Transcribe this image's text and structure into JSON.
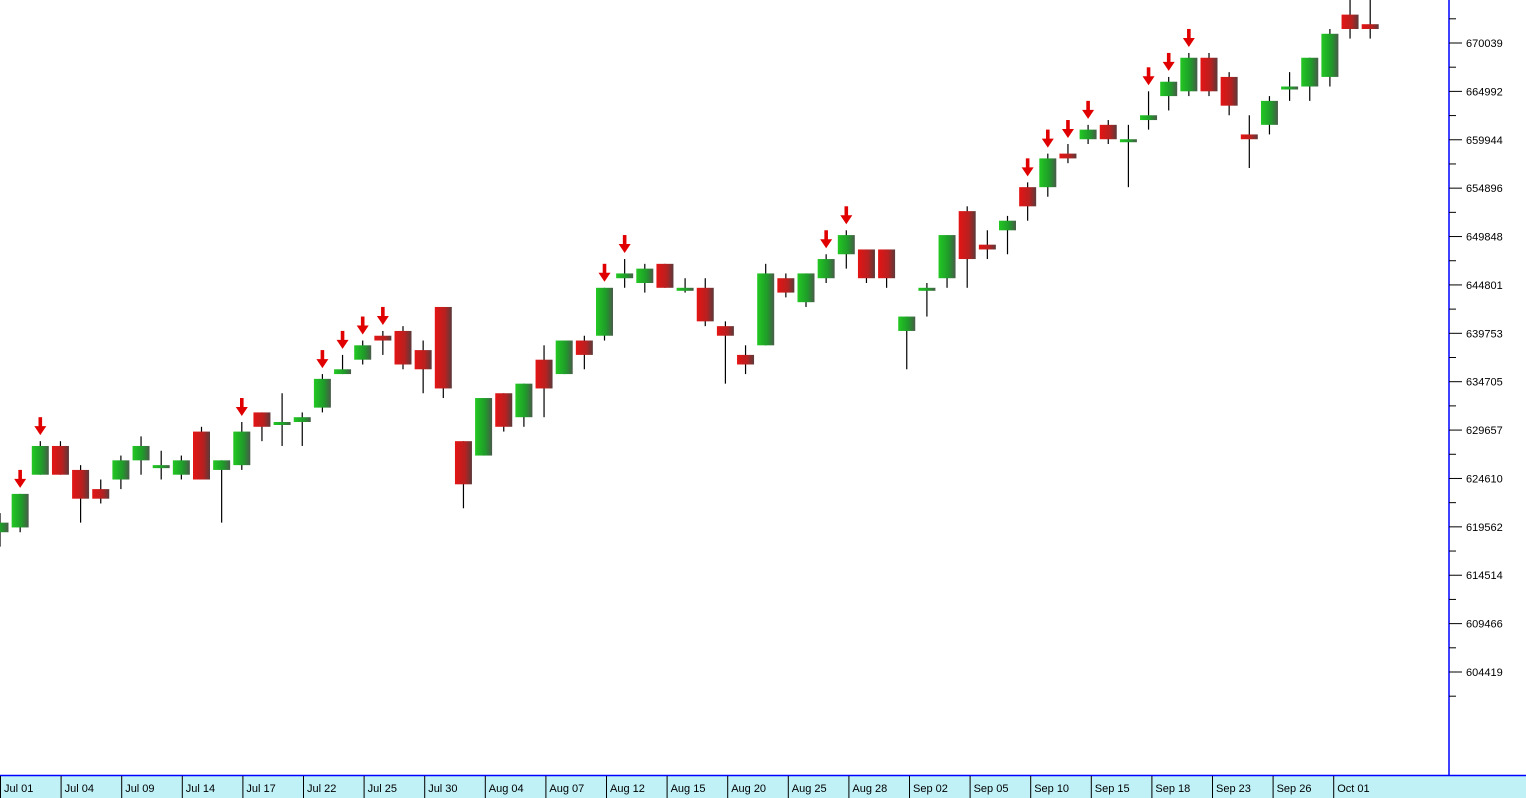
{
  "chart_data": {
    "type": "candlestick",
    "title": "",
    "xlabel": "",
    "ylabel": "",
    "ylim": [
      595000,
      677000
    ],
    "y_ticks": [
      "670039",
      "664992",
      "659944",
      "654896",
      "649848",
      "644801",
      "639753",
      "634705",
      "629657",
      "624610",
      "619562",
      "614514",
      "609466",
      "604419"
    ],
    "x_tick_labels": [
      "Jul 01",
      "Jul 04",
      "Jul 09",
      "Jul 14",
      "Jul 17",
      "Jul 22",
      "Jul 25",
      "Jul 30",
      "Aug 04",
      "Aug 07",
      "Aug 12",
      "Aug 15",
      "Aug 20",
      "Aug 25",
      "Aug 28",
      "Sep 02",
      "Sep 05",
      "Sep 10",
      "Sep 15",
      "Sep 18",
      "Sep 23",
      "Sep 26",
      "Oct 01"
    ],
    "grid": false,
    "colors": {
      "up": "#22b422",
      "down": "#dc1414",
      "wick": "#000000",
      "signal_arrow": "#e00000",
      "axis": "#0000ff",
      "date_bar": "#bff1f7"
    },
    "candles": [
      {
        "open": 619000,
        "high": 621000,
        "low": 617500,
        "close": 620000
      },
      {
        "open": 619500,
        "high": 623000,
        "low": 619000,
        "close": 623000,
        "signal": true
      },
      {
        "open": 625000,
        "high": 628500,
        "low": 625000,
        "close": 628000,
        "signal": true
      },
      {
        "open": 628000,
        "high": 628500,
        "low": 625000,
        "close": 625000
      },
      {
        "open": 625500,
        "high": 626000,
        "low": 620000,
        "close": 622500
      },
      {
        "open": 623500,
        "high": 624500,
        "low": 622000,
        "close": 622500
      },
      {
        "open": 624500,
        "high": 627000,
        "low": 623500,
        "close": 626500
      },
      {
        "open": 626500,
        "high": 629000,
        "low": 625000,
        "close": 628000
      },
      {
        "open": 626000,
        "high": 627500,
        "low": 624500,
        "close": 626000
      },
      {
        "open": 625000,
        "high": 627000,
        "low": 624500,
        "close": 626500
      },
      {
        "open": 629500,
        "high": 630000,
        "low": 624500,
        "close": 624500
      },
      {
        "open": 625500,
        "high": 626500,
        "low": 620000,
        "close": 626500
      },
      {
        "open": 626000,
        "high": 630500,
        "low": 625500,
        "close": 629500,
        "signal": true
      },
      {
        "open": 631500,
        "high": 631500,
        "low": 628500,
        "close": 630000
      },
      {
        "open": 630500,
        "high": 633500,
        "low": 628000,
        "close": 630500
      },
      {
        "open": 630500,
        "high": 631500,
        "low": 628000,
        "close": 631000
      },
      {
        "open": 632000,
        "high": 635500,
        "low": 631500,
        "close": 635000,
        "signal": true
      },
      {
        "open": 635500,
        "high": 637500,
        "low": 635500,
        "close": 636000,
        "signal": true
      },
      {
        "open": 637000,
        "high": 639000,
        "low": 636500,
        "close": 638500,
        "signal": true
      },
      {
        "open": 639500,
        "high": 640000,
        "low": 637500,
        "close": 639000,
        "signal": true
      },
      {
        "open": 640000,
        "high": 640500,
        "low": 636000,
        "close": 636500
      },
      {
        "open": 638000,
        "high": 639000,
        "low": 633500,
        "close": 636000
      },
      {
        "open": 642500,
        "high": 642500,
        "low": 633000,
        "close": 634000
      },
      {
        "open": 628500,
        "high": 628500,
        "low": 621500,
        "close": 624000
      },
      {
        "open": 627000,
        "high": 633000,
        "low": 627000,
        "close": 633000
      },
      {
        "open": 633500,
        "high": 633500,
        "low": 629500,
        "close": 630000
      },
      {
        "open": 631000,
        "high": 634500,
        "low": 630000,
        "close": 634500
      },
      {
        "open": 637000,
        "high": 638500,
        "low": 631000,
        "close": 634000
      },
      {
        "open": 635500,
        "high": 639000,
        "low": 635500,
        "close": 639000
      },
      {
        "open": 639000,
        "high": 639500,
        "low": 636000,
        "close": 637500
      },
      {
        "open": 639500,
        "high": 644500,
        "low": 639000,
        "close": 644500,
        "signal": true
      },
      {
        "open": 645500,
        "high": 647500,
        "low": 644500,
        "close": 646000,
        "signal": true
      },
      {
        "open": 645000,
        "high": 647000,
        "low": 644000,
        "close": 646500
      },
      {
        "open": 647000,
        "high": 647000,
        "low": 644500,
        "close": 644500
      },
      {
        "open": 644500,
        "high": 645500,
        "low": 644000,
        "close": 644500
      },
      {
        "open": 644500,
        "high": 645500,
        "low": 640500,
        "close": 641000
      },
      {
        "open": 640500,
        "high": 641000,
        "low": 634500,
        "close": 639500
      },
      {
        "open": 637500,
        "high": 638500,
        "low": 635500,
        "close": 636500
      },
      {
        "open": 638500,
        "high": 647000,
        "low": 638500,
        "close": 646000
      },
      {
        "open": 645500,
        "high": 646000,
        "low": 643500,
        "close": 644000
      },
      {
        "open": 643000,
        "high": 646000,
        "low": 642500,
        "close": 646000
      },
      {
        "open": 645500,
        "high": 648000,
        "low": 645000,
        "close": 647500,
        "signal": true
      },
      {
        "open": 648000,
        "high": 650500,
        "low": 646500,
        "close": 650000,
        "signal": true
      },
      {
        "open": 648500,
        "high": 648500,
        "low": 645000,
        "close": 645500
      },
      {
        "open": 648500,
        "high": 648500,
        "low": 644500,
        "close": 645500
      },
      {
        "open": 640000,
        "high": 641500,
        "low": 636000,
        "close": 641500
      },
      {
        "open": 644500,
        "high": 645000,
        "low": 641500,
        "close": 644500
      },
      {
        "open": 645500,
        "high": 650000,
        "low": 644500,
        "close": 650000
      },
      {
        "open": 652500,
        "high": 653000,
        "low": 644500,
        "close": 647500
      },
      {
        "open": 649000,
        "high": 650500,
        "low": 647500,
        "close": 648500
      },
      {
        "open": 650500,
        "high": 652000,
        "low": 648000,
        "close": 651500
      },
      {
        "open": 655000,
        "high": 655500,
        "low": 651500,
        "close": 653000,
        "signal": true
      },
      {
        "open": 655000,
        "high": 658500,
        "low": 654000,
        "close": 658000,
        "signal": true
      },
      {
        "open": 658500,
        "high": 659500,
        "low": 657500,
        "close": 658000,
        "signal": true
      },
      {
        "open": 660000,
        "high": 661500,
        "low": 659500,
        "close": 661000,
        "signal": true
      },
      {
        "open": 661500,
        "high": 662000,
        "low": 659500,
        "close": 660000
      },
      {
        "open": 660000,
        "high": 661500,
        "low": 655000,
        "close": 660000
      },
      {
        "open": 662000,
        "high": 665000,
        "low": 661000,
        "close": 662500,
        "signal": true
      },
      {
        "open": 664500,
        "high": 666500,
        "low": 663000,
        "close": 666000,
        "signal": true
      },
      {
        "open": 665000,
        "high": 669000,
        "low": 664500,
        "close": 668500,
        "signal": true
      },
      {
        "open": 668500,
        "high": 669000,
        "low": 664500,
        "close": 665000
      },
      {
        "open": 666500,
        "high": 667000,
        "low": 662500,
        "close": 663500
      },
      {
        "open": 660500,
        "high": 662500,
        "low": 657000,
        "close": 660000
      },
      {
        "open": 661500,
        "high": 664500,
        "low": 660500,
        "close": 664000
      },
      {
        "open": 665500,
        "high": 667000,
        "low": 664000,
        "close": 665500
      },
      {
        "open": 665500,
        "high": 668500,
        "low": 664000,
        "close": 668500
      },
      {
        "open": 666500,
        "high": 671500,
        "low": 665500,
        "close": 671000
      },
      {
        "open": 673000,
        "high": 676000,
        "low": 670500,
        "close": 671500,
        "signal": true
      },
      {
        "open": 672000,
        "high": 677000,
        "low": 670500,
        "close": 671500,
        "signal": true
      }
    ]
  }
}
